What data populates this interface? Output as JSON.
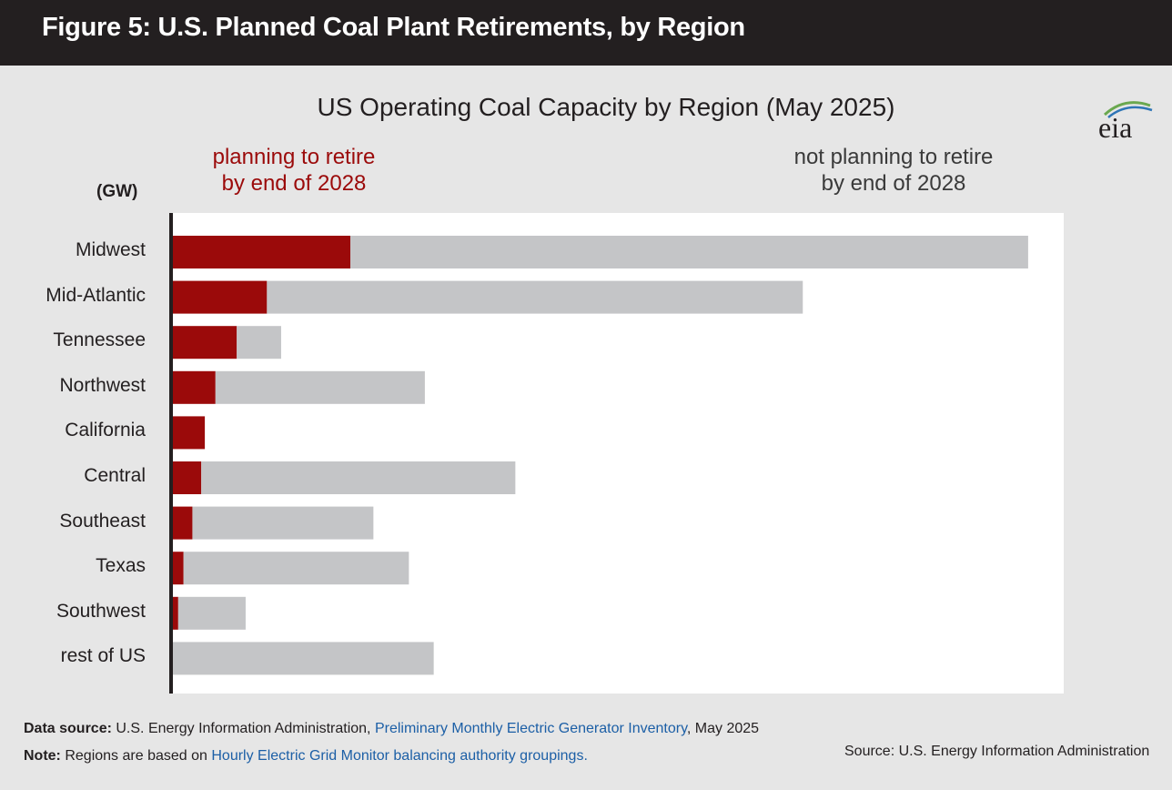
{
  "header": {
    "title": "Figure 5: U.S. Planned Coal Plant Retirements, by Region"
  },
  "logo": {
    "text": "eia"
  },
  "colors": {
    "retire": "#9b0a0a",
    "not_retire": "#c4c5c7",
    "header_bg": "#231f20",
    "link": "#1c5fa6"
  },
  "chart_data": {
    "type": "bar",
    "orientation": "horizontal",
    "stacked": true,
    "title": "US Operating Coal Capacity by Region (May 2025)",
    "unit_label": "(GW)",
    "categories": [
      "Midwest",
      "Mid-Atlantic",
      "Tennessee",
      "Northwest",
      "California",
      "Central",
      "Southeast",
      "Texas",
      "Southwest",
      "rest of US"
    ],
    "series": [
      {
        "name": "planning to retire by end of 2028",
        "name_lines": [
          "planning to retire",
          "by end of 2028"
        ],
        "values": [
          10.0,
          5.3,
          3.6,
          2.4,
          1.8,
          1.6,
          1.1,
          0.6,
          0.3,
          0.0
        ]
      },
      {
        "name": "not planning to retire by end of 2028",
        "name_lines": [
          "not planning to retire",
          "by end of 2028"
        ],
        "values": [
          38.2,
          30.2,
          2.5,
          11.8,
          0.0,
          17.7,
          10.2,
          12.7,
          3.8,
          14.7
        ]
      }
    ],
    "xlim": [
      0,
      50
    ],
    "grid": false,
    "legend": "top"
  },
  "footer": {
    "data_source_label": "Data source:",
    "data_source_text": "U.S. Energy Information Administration,",
    "data_source_link": "Preliminary Monthly Electric Generator Inventory",
    "data_source_suffix": ", May 2025",
    "note_label": "Note:",
    "note_text": "Regions are based on",
    "note_link": "Hourly Electric Grid Monitor balancing authority groupings.",
    "source": "Source: U.S. Energy Information Administration"
  }
}
